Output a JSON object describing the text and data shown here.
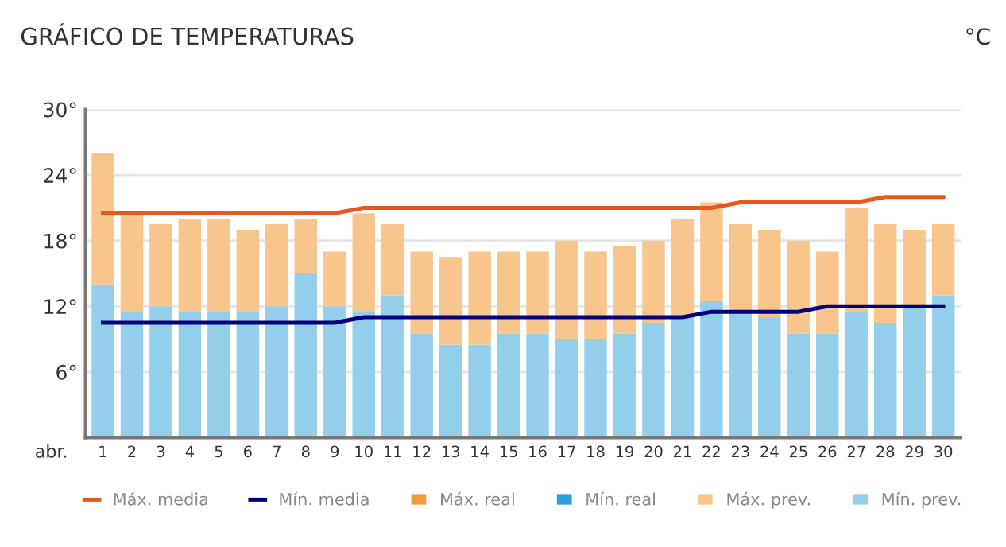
{
  "chart_data": {
    "type": "bar",
    "title": "GRÁFICO DE TEMPERATURAS",
    "annotations": [
      "°C"
    ],
    "xlabel": "abr.",
    "stacked": true,
    "categories": [
      "1",
      "2",
      "3",
      "4",
      "5",
      "6",
      "7",
      "8",
      "9",
      "10",
      "11",
      "12",
      "13",
      "14",
      "15",
      "16",
      "17",
      "18",
      "19",
      "20",
      "21",
      "22",
      "23",
      "24",
      "25",
      "26",
      "27",
      "28",
      "29",
      "30"
    ],
    "series": [
      {
        "name": "Máx. media",
        "type": "line",
        "color": "#e8581c",
        "values": [
          20.5,
          20.5,
          20.5,
          20.5,
          20.5,
          20.5,
          20.5,
          20.5,
          20.5,
          21,
          21,
          21,
          21,
          21,
          21,
          21,
          21,
          21,
          21,
          21,
          21,
          21,
          21.5,
          21.5,
          21.5,
          21.5,
          21.5,
          22,
          22,
          22
        ]
      },
      {
        "name": "Mín. media",
        "type": "line",
        "color": "#000080",
        "values": [
          10.5,
          10.5,
          10.5,
          10.5,
          10.5,
          10.5,
          10.5,
          10.5,
          10.5,
          11,
          11,
          11,
          11,
          11,
          11,
          11,
          11,
          11,
          11,
          11,
          11,
          11.5,
          11.5,
          11.5,
          11.5,
          12,
          12,
          12,
          12,
          12
        ]
      },
      {
        "name": "Mín. prev.",
        "color": "#93cfea",
        "values": [
          14,
          11.5,
          12,
          11.5,
          11.5,
          11.5,
          12,
          15,
          12,
          11.5,
          13,
          9.5,
          8.5,
          8.5,
          9.5,
          9.5,
          9,
          9,
          9.5,
          10.5,
          11,
          12.5,
          11.5,
          11,
          9.5,
          9.5,
          11.5,
          10.5,
          12,
          13
        ]
      },
      {
        "name": "Máx. prev.",
        "color": "#f8c68c",
        "values": [
          12,
          9,
          7.5,
          8.5,
          8.5,
          7.5,
          7.5,
          5,
          5,
          9,
          6.5,
          7.5,
          8,
          8.5,
          7.5,
          7.5,
          9,
          8,
          8,
          7.5,
          9,
          9,
          8,
          8,
          8.5,
          7.5,
          9.5,
          9,
          7,
          6.5
        ]
      },
      {
        "name": "Mín. real",
        "color": "#2a9fd8",
        "values": [
          null,
          null,
          null,
          null,
          null,
          null,
          null,
          null,
          null,
          null,
          null,
          null,
          null,
          null,
          null,
          null,
          null,
          null,
          null,
          null,
          null,
          null,
          null,
          null,
          null,
          null,
          null,
          null,
          null,
          null
        ]
      },
      {
        "name": "Máx. real",
        "color": "#f39a3a",
        "values": [
          null,
          null,
          null,
          null,
          null,
          null,
          null,
          null,
          null,
          null,
          null,
          null,
          null,
          null,
          null,
          null,
          null,
          null,
          null,
          null,
          null,
          null,
          null,
          null,
          null,
          null,
          null,
          null,
          null,
          null
        ]
      }
    ],
    "ylim": [
      0,
      30
    ],
    "yticks": [
      {
        "value": 6,
        "label": "6°"
      },
      {
        "value": 12,
        "label": "12°"
      },
      {
        "value": 18,
        "label": "18°"
      },
      {
        "value": 24,
        "label": "24°"
      },
      {
        "value": 30,
        "label": "30°"
      }
    ],
    "grid": "y",
    "legend": "bottom"
  }
}
